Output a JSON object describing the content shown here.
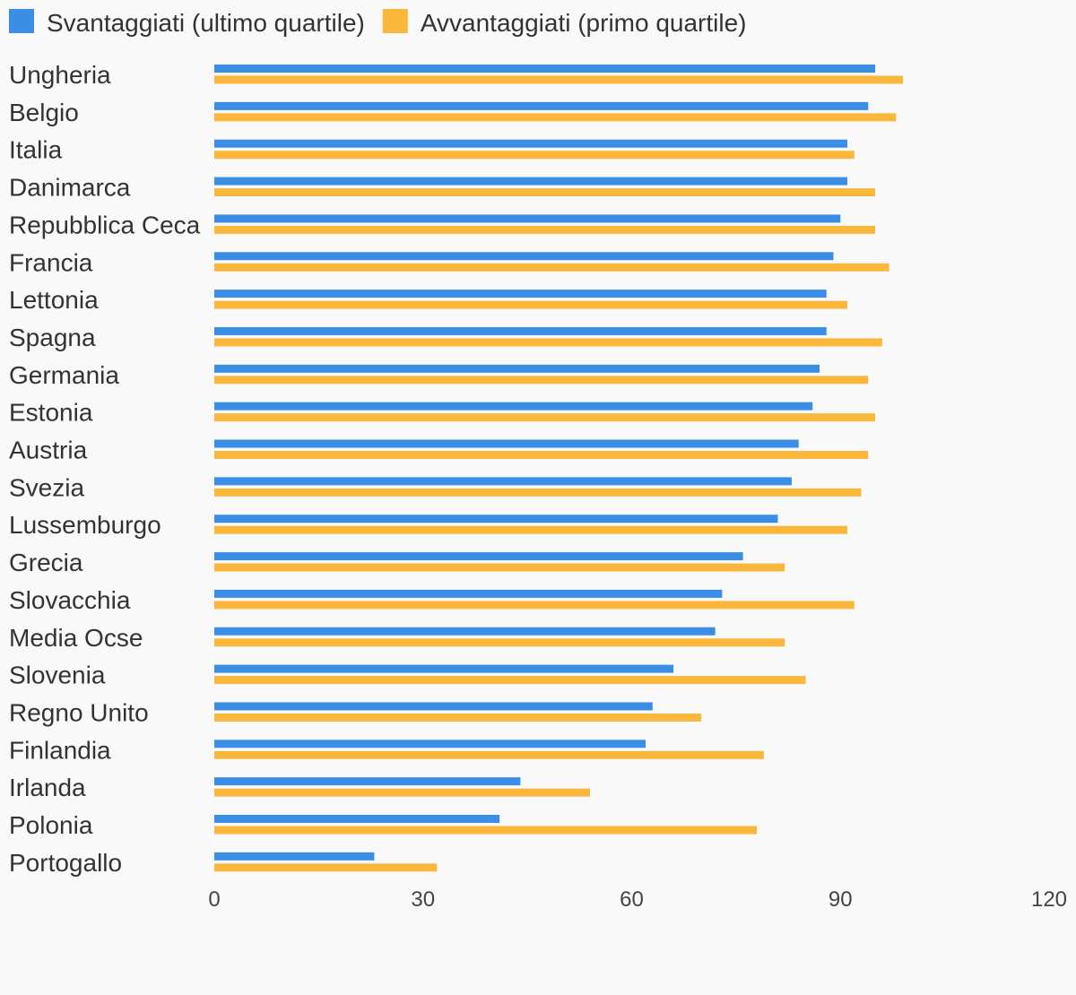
{
  "chart_data": {
    "type": "bar",
    "orientation": "horizontal",
    "categories": [
      "Ungheria",
      "Belgio",
      "Italia",
      "Danimarca",
      "Repubblica Ceca",
      "Francia",
      "Lettonia",
      "Spagna",
      "Germania",
      "Estonia",
      "Austria",
      "Svezia",
      "Lussemburgo",
      "Grecia",
      "Slovacchia",
      "Media Ocse",
      "Slovenia",
      "Regno Unito",
      "Finlandia",
      "Irlanda",
      "Polonia",
      "Portogallo"
    ],
    "series": [
      {
        "name": "Svantaggiati (ultimo quartile)",
        "color": "#3a8ee6",
        "values": [
          95,
          94,
          91,
          91,
          90,
          89,
          88,
          88,
          87,
          86,
          84,
          83,
          81,
          76,
          73,
          72,
          66,
          63,
          62,
          44,
          41,
          23
        ]
      },
      {
        "name": "Avvantaggiati (primo quartile)",
        "color": "#fbb73c",
        "values": [
          99,
          98,
          92,
          95,
          95,
          97,
          91,
          96,
          94,
          95,
          94,
          93,
          91,
          82,
          92,
          82,
          85,
          70,
          79,
          54,
          78,
          32
        ]
      }
    ],
    "xlim": [
      0,
      120
    ],
    "xticks": [
      "0",
      "30",
      "60",
      "90",
      "120"
    ],
    "legend_position": "top-left",
    "grid": false
  }
}
